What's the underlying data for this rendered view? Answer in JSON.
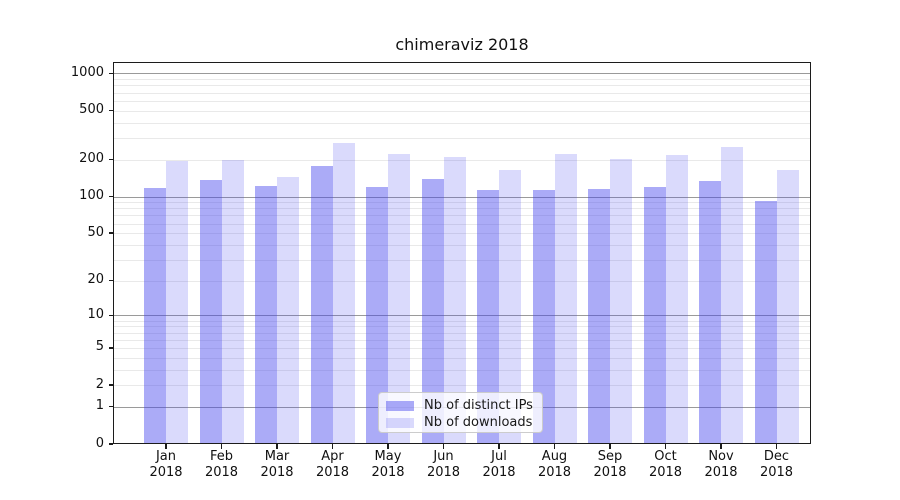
{
  "chart_data": {
    "type": "bar",
    "title": "chimeraviz 2018",
    "categories": [
      "Jan",
      "Feb",
      "Mar",
      "Apr",
      "May",
      "Jun",
      "Jul",
      "Aug",
      "Sep",
      "Oct",
      "Nov",
      "Dec"
    ],
    "year_label": "2018",
    "series": [
      {
        "name": "Nb of distinct IPs",
        "color": "#4444ee",
        "alpha": 0.45,
        "values": [
          118,
          137,
          121,
          177,
          120,
          139,
          114,
          112,
          115,
          119,
          134,
          92
        ]
      },
      {
        "name": "Nb of downloads",
        "color": "#4444ee",
        "alpha": 0.2,
        "values": [
          194,
          197,
          145,
          273,
          221,
          211,
          164,
          222,
          201,
          219,
          254,
          164
        ]
      }
    ],
    "y_axis": {
      "scale": "log1p",
      "ticks": [
        1000,
        500,
        200,
        100,
        50,
        20,
        10,
        5,
        2,
        1,
        0
      ],
      "ylim": [
        0,
        1200
      ]
    },
    "grid": {
      "major_values": [
        1,
        10,
        100,
        1000
      ],
      "minor_values": [
        2,
        3,
        4,
        5,
        6,
        7,
        8,
        9,
        20,
        30,
        40,
        50,
        60,
        70,
        80,
        90,
        200,
        300,
        400,
        500,
        600,
        700,
        800,
        900
      ],
      "major_color": "#9a9a9a",
      "minor_color": "#e9e9e9",
      "on": true
    },
    "legend_position": "inside-bottom-center"
  }
}
